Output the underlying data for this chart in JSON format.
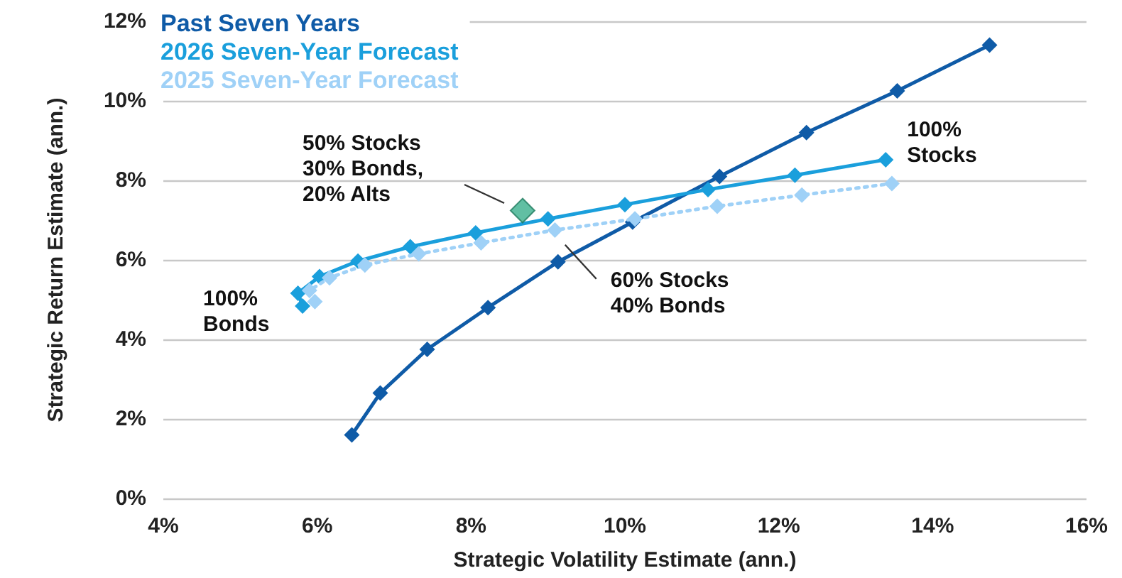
{
  "chart_data": {
    "type": "line",
    "xlabel": "Strategic Volatility Estimate (ann.)",
    "ylabel": "Strategic Return Estimate (ann.)",
    "xlim": [
      4,
      16
    ],
    "xticks": [
      {
        "value": 4,
        "label": "4%"
      },
      {
        "value": 6,
        "label": "6%"
      },
      {
        "value": 8,
        "label": "8%"
      },
      {
        "value": 10,
        "label": "10%"
      },
      {
        "value": 12,
        "label": "12%"
      },
      {
        "value": 14,
        "label": "14%"
      },
      {
        "value": 16,
        "label": "16%"
      }
    ],
    "ylim": [
      0,
      12
    ],
    "yticks": [
      {
        "value": 0,
        "label": "0%"
      },
      {
        "value": 2,
        "label": "2%"
      },
      {
        "value": 4,
        "label": "4%"
      },
      {
        "value": 6,
        "label": "6%"
      },
      {
        "value": 8,
        "label": "8%"
      },
      {
        "value": 10,
        "label": "10%"
      },
      {
        "value": 12,
        "label": "12%"
      }
    ],
    "grid": "y",
    "legend": "top left",
    "marker": "diamond",
    "series": [
      {
        "name": "Past Seven Years",
        "color": "#0f5ba7",
        "line_style": "solid",
        "x": [
          6.45,
          6.82,
          7.43,
          8.22,
          9.13,
          10.1,
          11.23,
          12.36,
          13.54,
          14.74
        ],
        "values": [
          1.6,
          2.65,
          3.75,
          4.8,
          5.95,
          6.95,
          8.1,
          9.2,
          10.25,
          11.4
        ]
      },
      {
        "name": "2026 Seven-Year Forecast",
        "color": "#1a9fdc",
        "line_style": "solid",
        "x": [
          5.81,
          5.75,
          6.03,
          6.53,
          7.21,
          8.06,
          9.0,
          10.0,
          11.08,
          12.21,
          13.39
        ],
        "values": [
          4.84,
          5.16,
          5.58,
          5.97,
          6.33,
          6.68,
          7.03,
          7.39,
          7.77,
          8.13,
          8.52
        ]
      },
      {
        "name": "2025 Seven-Year Forecast",
        "color": "#9fd1f7",
        "line_style": "dotted",
        "x": [
          5.97,
          5.9,
          6.16,
          6.62,
          7.32,
          8.13,
          9.09,
          10.13,
          11.2,
          12.3,
          13.47
        ],
        "values": [
          4.95,
          5.23,
          5.55,
          5.87,
          6.15,
          6.43,
          6.75,
          7.03,
          7.35,
          7.63,
          7.92
        ]
      },
      {
        "type": "scatter",
        "color": "#3aaf8c",
        "x": [
          8.67
        ],
        "values": [
          7.24
        ]
      }
    ],
    "annotations": [
      {
        "text": "100%\nBonds",
        "x": 5.81,
        "y": 4.84
      },
      {
        "text": "100%\nStocks",
        "x": 13.39,
        "y": 8.52
      },
      "50% Stocks\n30% Bonds,\n20% Alts",
      {
        "text": "60% Stocks\n40% Bonds",
        "x": 9.13,
        "y": 5.95
      }
    ]
  }
}
